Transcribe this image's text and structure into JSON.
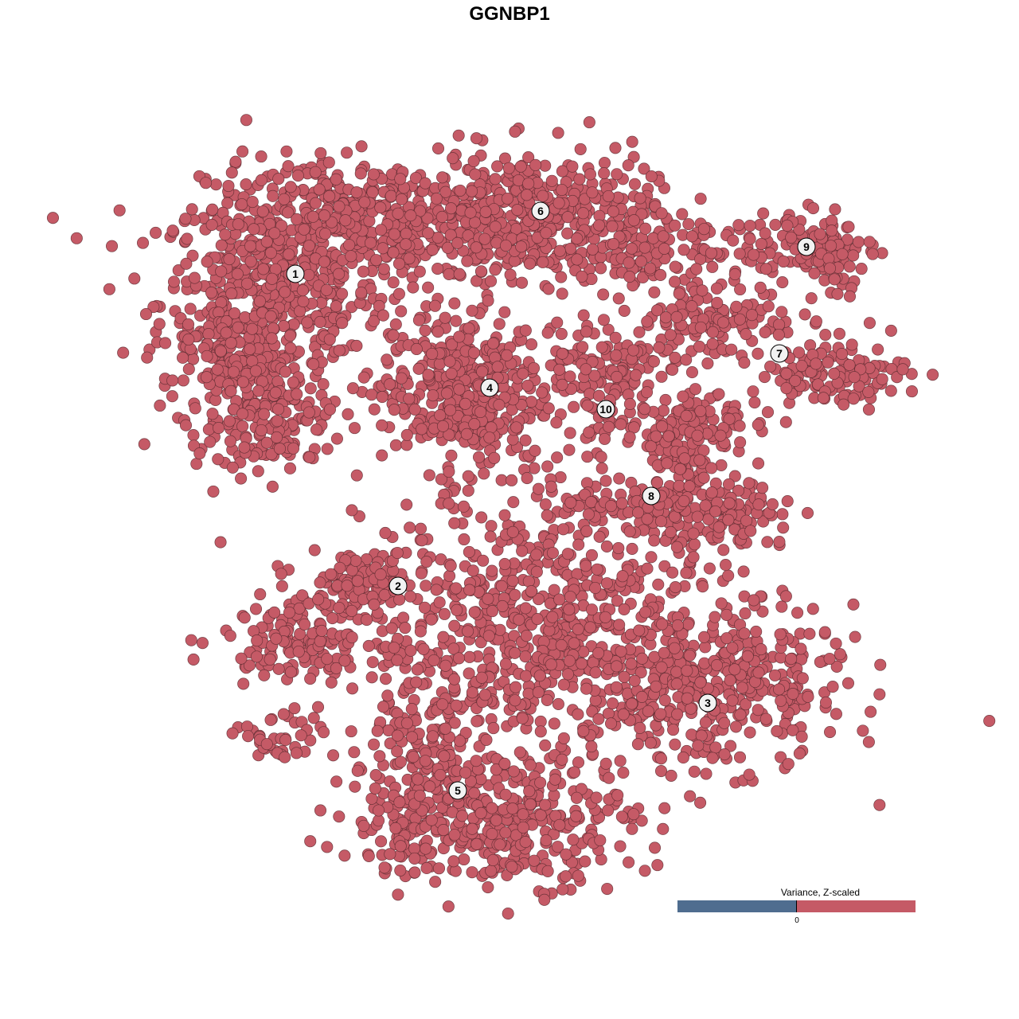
{
  "title": "GGNBP1",
  "chart_data": {
    "type": "scatter",
    "title": "GGNBP1",
    "xlabel": "",
    "ylabel": "",
    "axes_visible": false,
    "grid": false,
    "xlim": [
      -64,
      64
    ],
    "ylim": [
      -64,
      64
    ],
    "point_color": "#c55a66",
    "point_edge_color": "#5a2a30",
    "clusters": [
      {
        "label": "1",
        "center": [
          -26.9,
          29.6
        ],
        "components": [
          {
            "c": [
              -30,
              26
            ],
            "sd": [
              7,
              7
            ],
            "n": 500
          },
          {
            "c": [
              -34,
              16
            ],
            "sd": [
              4,
              5
            ],
            "n": 150
          },
          {
            "c": [
              -29,
              10
            ],
            "sd": [
              4,
              2.5
            ],
            "n": 80
          }
        ]
      },
      {
        "label": "6",
        "center": [
          3.9,
          37.5
        ],
        "components": [
          {
            "c": [
              -16,
              36
            ],
            "sd": [
              11,
              4
            ],
            "n": 500
          },
          {
            "c": [
              4,
              37
            ],
            "sd": [
              7,
              4
            ],
            "n": 300
          },
          {
            "c": [
              16,
              33
            ],
            "sd": [
              4,
              3
            ],
            "n": 100
          }
        ]
      },
      {
        "label": "9",
        "center": [
          37.3,
          33.0
        ],
        "components": [
          {
            "c": [
              35,
              33
            ],
            "sd": [
              6,
              2.5
            ],
            "n": 120
          },
          {
            "c": [
              41,
              31
            ],
            "sd": [
              1.5,
              3.5
            ],
            "n": 40
          }
        ]
      },
      {
        "label": "7",
        "center": [
          33.9,
          19.6
        ],
        "components": [
          {
            "c": [
              26,
              24
            ],
            "sd": [
              5,
              2.5
            ],
            "n": 120
          },
          {
            "c": [
              40,
              17
            ],
            "sd": [
              5,
              2
            ],
            "n": 120
          }
        ]
      },
      {
        "label": "4",
        "center": [
          -2.5,
          15.3
        ],
        "components": [
          {
            "c": [
              -6,
              15
            ],
            "sd": [
              5,
              5
            ],
            "n": 400
          }
        ]
      },
      {
        "label": "10",
        "center": [
          12.1,
          12.6
        ],
        "components": [
          {
            "c": [
              12,
              19
            ],
            "sd": [
              5,
              2.5
            ],
            "n": 100
          },
          {
            "c": [
              12.5,
              13
            ],
            "sd": [
              2,
              3
            ],
            "n": 50
          }
        ]
      },
      {
        "label": "8",
        "center": [
          17.8,
          1.7
        ],
        "components": [
          {
            "c": [
              24,
              11
            ],
            "sd": [
              3,
              2
            ],
            "n": 80
          },
          {
            "c": [
              21,
              6
            ],
            "sd": [
              2,
              3
            ],
            "n": 80
          },
          {
            "c": [
              28,
              -1
            ],
            "sd": [
              4,
              2.5
            ],
            "n": 120
          },
          {
            "c": [
              14,
              0
            ],
            "sd": [
              6,
              2
            ],
            "n": 80
          }
        ]
      },
      {
        "label": "2",
        "center": [
          -14.0,
          -9.6
        ],
        "components": [
          {
            "c": [
              -26,
              -16
            ],
            "sd": [
              5,
              2.5
            ],
            "n": 150
          },
          {
            "c": [
              -18,
              -9
            ],
            "sd": [
              4,
              2
            ],
            "n": 100
          },
          {
            "c": [
              -29,
              -29
            ],
            "sd": [
              2.5,
              2
            ],
            "n": 40
          }
        ]
      },
      {
        "label": "3",
        "center": [
          24.9,
          -24.3
        ],
        "components": [
          {
            "c": [
              26,
              -22
            ],
            "sd": [
              8,
              5
            ],
            "n": 400
          }
        ]
      },
      {
        "label": "5",
        "center": [
          -6.5,
          -35.3
        ],
        "components": [
          {
            "c": [
              -2,
              -39
            ],
            "sd": [
              9,
              4
            ],
            "n": 400
          },
          {
            "c": [
              -12,
              -31
            ],
            "sd": [
              4,
              6
            ],
            "n": 150
          },
          {
            "c": [
              4,
              -15
            ],
            "sd": [
              11,
              9
            ],
            "n": 700
          }
        ]
      }
    ],
    "legend": {
      "title": "Variance, Z-scaled",
      "tick": "0",
      "colors": [
        "#4f6d8f",
        "#c55a66"
      ],
      "placement": "bottom-right"
    }
  }
}
